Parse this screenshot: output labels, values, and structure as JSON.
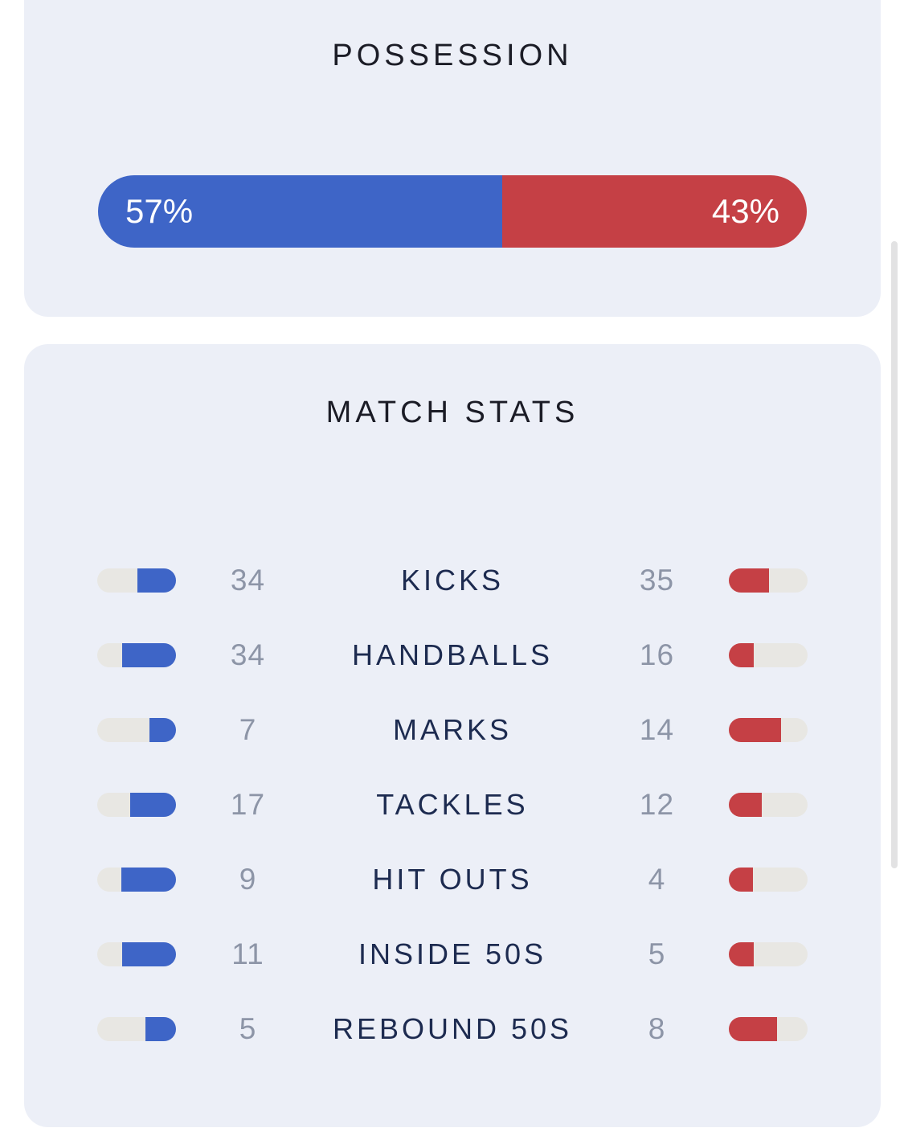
{
  "colors": {
    "page_bg": "#FFFFFF",
    "card_bg": "#ECEFF7",
    "home_accent": "#3E65C7",
    "away_accent": "#C54045",
    "pill_track": "#E8E7E3",
    "value_text": "#8D95A7",
    "label_text": "#1D2B50",
    "title_text": "#1B1C26",
    "bar_text": "#FFFFFF",
    "scrollbar": "#E2E2E3"
  },
  "possession": {
    "title": "POSSESSION",
    "home_pct": 57,
    "away_pct": 43,
    "home_label": "57%",
    "away_label": "43%"
  },
  "match_stats": {
    "title": "MATCH STATS",
    "rows": [
      {
        "label": "KICKS",
        "home": 34,
        "away": 35
      },
      {
        "label": "HANDBALLS",
        "home": 34,
        "away": 16
      },
      {
        "label": "MARKS",
        "home": 7,
        "away": 14
      },
      {
        "label": "TACKLES",
        "home": 17,
        "away": 12
      },
      {
        "label": "HIT OUTS",
        "home": 9,
        "away": 4
      },
      {
        "label": "INSIDE 50S",
        "home": 11,
        "away": 5
      },
      {
        "label": "REBOUND 50S",
        "home": 5,
        "away": 8
      }
    ]
  }
}
